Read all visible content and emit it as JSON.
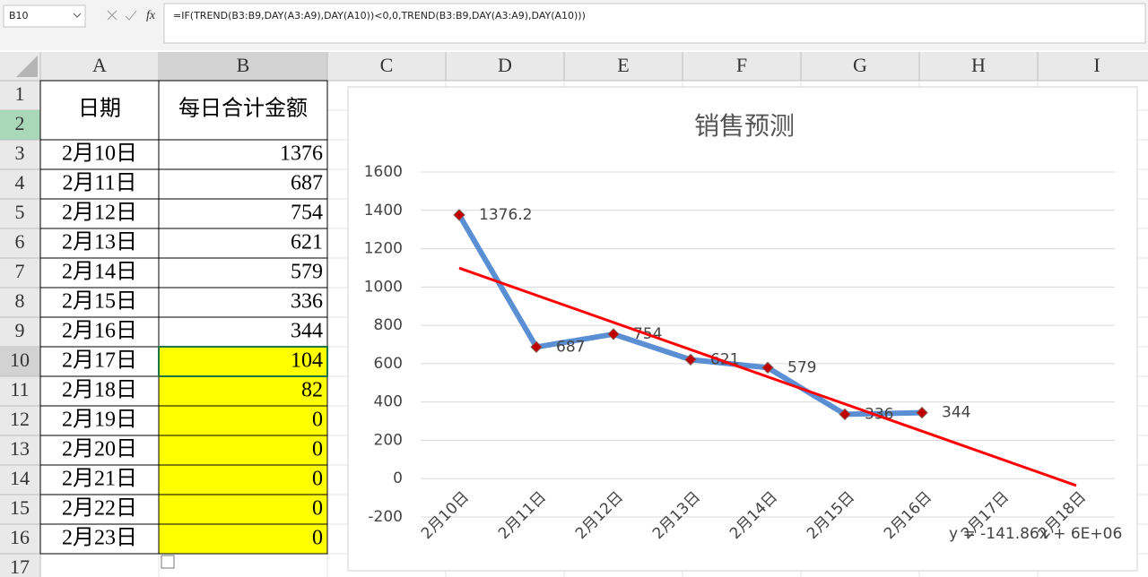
{
  "name_box": "B10",
  "function_icon": "fx",
  "formula": "=IF(TREND(B3:B9,DAY(A3:A9),DAY(A10))<0,0,TREND(B3:B9,DAY(A3:A9),DAY(A10)))",
  "columns": [
    "A",
    "B",
    "C",
    "D",
    "E",
    "F",
    "G",
    "H",
    "I"
  ],
  "rows": [
    1,
    2,
    3,
    4,
    5,
    6,
    7,
    8,
    9,
    10,
    11,
    12,
    13,
    14,
    15,
    16,
    17
  ],
  "table": {
    "header": [
      "日期",
      "每日合计金额"
    ],
    "rows": [
      [
        "2月10日",
        1376
      ],
      [
        "2月11日",
        687
      ],
      [
        "2月12日",
        754
      ],
      [
        "2月13日",
        621
      ],
      [
        "2月14日",
        579
      ],
      [
        "2月15日",
        336
      ],
      [
        "2月16日",
        344
      ],
      [
        "2月17日",
        104
      ],
      [
        "2月18日",
        82
      ],
      [
        "2月19日",
        0
      ],
      [
        "2月20日",
        0
      ],
      [
        "2月21日",
        0
      ],
      [
        "2月22日",
        0
      ],
      [
        "2月23日",
        0
      ]
    ]
  },
  "chart": {
    "type": "line",
    "title": "销售预测",
    "categories": [
      "2月10日",
      "2月11日",
      "2月12日",
      "2月13日",
      "2月14日",
      "2月15日",
      "2月16日",
      "2月17日",
      "2月18日"
    ],
    "series": [
      {
        "color": "#5b8fd4",
        "marker_color": "#c00000",
        "values": [
          1376.2,
          687,
          754,
          621,
          579,
          336,
          344,
          null,
          null
        ]
      }
    ],
    "ylim": [
      -200,
      1600
    ],
    "yticks": [
      -200,
      0,
      200,
      400,
      600,
      800,
      1000,
      1200,
      1400,
      1600
    ],
    "grid": true,
    "trendline": {
      "color": "#ff0000",
      "from": 1099,
      "to": -36,
      "equation": "y = -141.86x + 6E+06"
    }
  }
}
